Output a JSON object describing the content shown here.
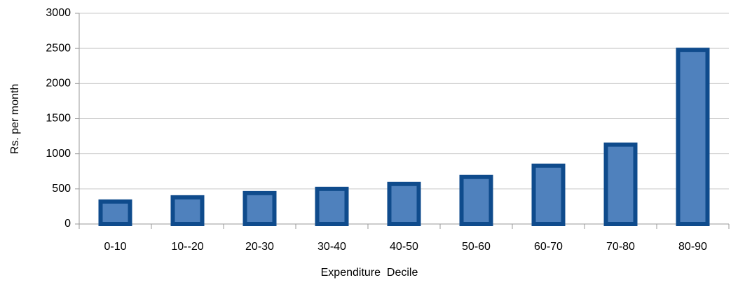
{
  "chart_data": {
    "type": "bar",
    "categories": [
      "0-10",
      "10--20",
      "20-30",
      "30-40",
      "40-50",
      "50-60",
      "60-70",
      "70-80",
      "80-90"
    ],
    "values": [
      350,
      410,
      470,
      530,
      600,
      700,
      860,
      1160,
      2510
    ],
    "color": "#4f81bd",
    "edge_color": "#0f4b8c",
    "ylim": [
      0,
      3000
    ],
    "yticks": [
      0,
      500,
      1000,
      1500,
      2000,
      2500,
      3000
    ],
    "grid": true,
    "xlabel": "Expenditure  Decile",
    "ylabel": "Rs. per month"
  }
}
